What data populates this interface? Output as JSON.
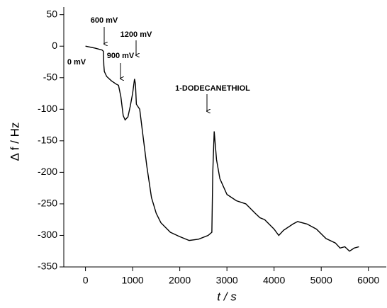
{
  "chart_data": {
    "type": "line",
    "x_label": "t / s",
    "y_label": "Δ f / Hz",
    "xlim": [
      -460,
      6380
    ],
    "ylim": [
      -350,
      62
    ],
    "xticks": [
      0,
      1000,
      2000,
      3000,
      4000,
      5000,
      6000
    ],
    "yticks": [
      -350,
      -300,
      -250,
      -200,
      -150,
      -100,
      -50,
      0,
      50
    ],
    "grid": false,
    "color": "#000000",
    "x": [
      0,
      200,
      350,
      380,
      390,
      400,
      450,
      550,
      650,
      700,
      750,
      800,
      840,
      900,
      950,
      1000,
      1040,
      1060,
      1080,
      1150,
      1200,
      1300,
      1400,
      1500,
      1600,
      1800,
      2000,
      2200,
      2400,
      2600,
      2680,
      2700,
      2730,
      2780,
      2850,
      3000,
      3200,
      3400,
      3600,
      3700,
      3800,
      4000,
      4100,
      4200,
      4400,
      4500,
      4700,
      4900,
      5100,
      5300,
      5400,
      5500,
      5600,
      5700,
      5800
    ],
    "values": [
      0,
      -3,
      -6,
      -8,
      -30,
      -40,
      -48,
      -55,
      -60,
      -62,
      -80,
      -110,
      -117,
      -112,
      -95,
      -75,
      -52,
      -60,
      -92,
      -100,
      -130,
      -190,
      -240,
      -265,
      -280,
      -295,
      -302,
      -308,
      -306,
      -300,
      -295,
      -200,
      -135,
      -180,
      -210,
      -235,
      -245,
      -250,
      -265,
      -272,
      -275,
      -290,
      -300,
      -292,
      -282,
      -278,
      -282,
      -290,
      -305,
      -312,
      -320,
      -318,
      -325,
      -320,
      -318
    ],
    "annotations": [
      "600 mV",
      "0 mV",
      "900 mV",
      "1200 mV",
      "1-DODECANETHIOL"
    ]
  }
}
